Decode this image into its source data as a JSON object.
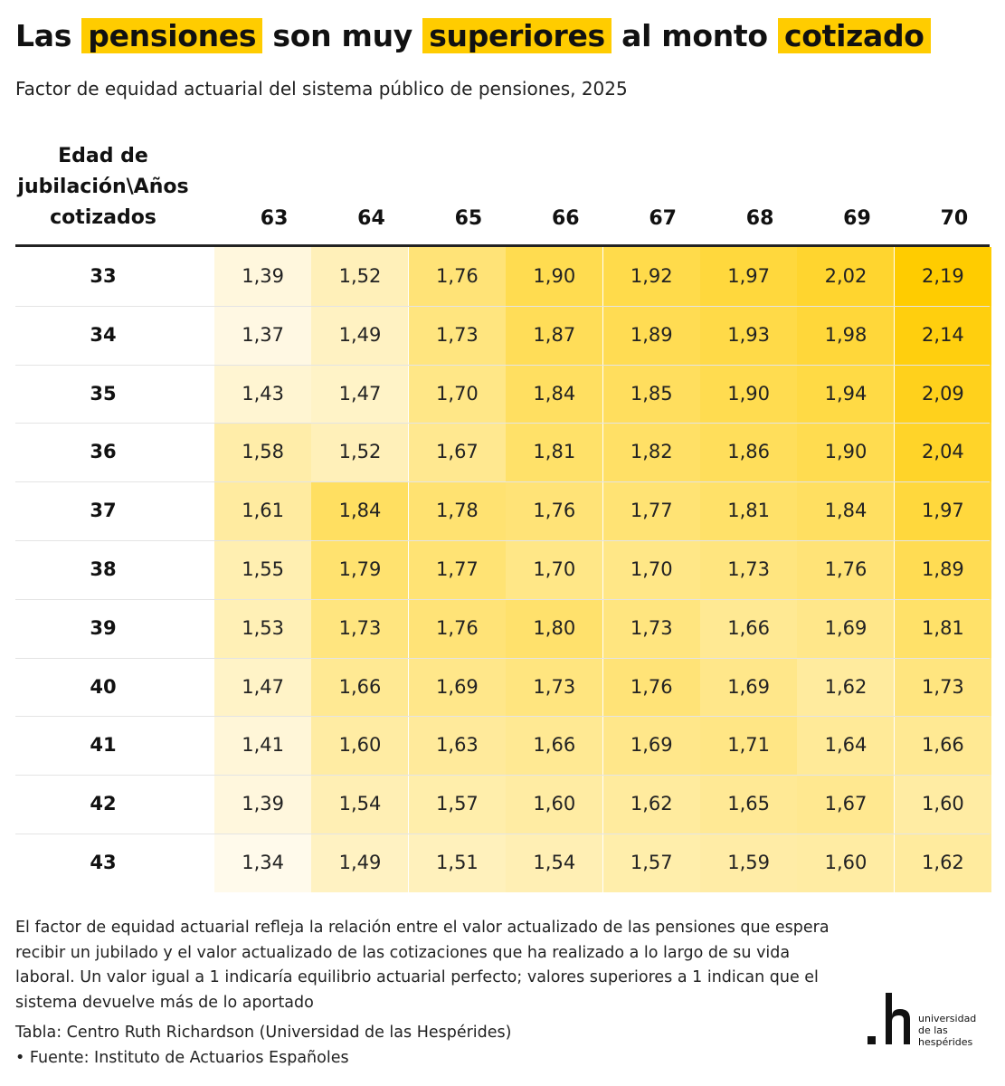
{
  "title": {
    "w1": "Las",
    "w2": "pensiones",
    "w3": "son muy",
    "w4": "superiores",
    "w5": "al monto",
    "w6": "cotizado"
  },
  "subtitle": "Factor de equidad actuarial del sistema público de pensiones, 2025",
  "chart_data": {
    "type": "heatmap",
    "corner_label": "Edad de jubilación\\Años cotizados",
    "columns": [
      "63",
      "64",
      "65",
      "66",
      "67",
      "68",
      "69",
      "70"
    ],
    "rows": [
      "33",
      "34",
      "35",
      "36",
      "37",
      "38",
      "39",
      "40",
      "41",
      "42",
      "43"
    ],
    "values": [
      [
        "1,39",
        "1,52",
        "1,76",
        "1,90",
        "1,92",
        "1,97",
        "2,02",
        "2,19"
      ],
      [
        "1,37",
        "1,49",
        "1,73",
        "1,87",
        "1,89",
        "1,93",
        "1,98",
        "2,14"
      ],
      [
        "1,43",
        "1,47",
        "1,70",
        "1,84",
        "1,85",
        "1,90",
        "1,94",
        "2,09"
      ],
      [
        "1,58",
        "1,52",
        "1,67",
        "1,81",
        "1,82",
        "1,86",
        "1,90",
        "2,04"
      ],
      [
        "1,61",
        "1,84",
        "1,78",
        "1,76",
        "1,77",
        "1,81",
        "1,84",
        "1,97"
      ],
      [
        "1,55",
        "1,79",
        "1,77",
        "1,70",
        "1,70",
        "1,73",
        "1,76",
        "1,89"
      ],
      [
        "1,53",
        "1,73",
        "1,76",
        "1,80",
        "1,73",
        "1,66",
        "1,69",
        "1,81"
      ],
      [
        "1,47",
        "1,66",
        "1,69",
        "1,73",
        "1,76",
        "1,69",
        "1,62",
        "1,73"
      ],
      [
        "1,41",
        "1,60",
        "1,63",
        "1,66",
        "1,69",
        "1,71",
        "1,64",
        "1,66"
      ],
      [
        "1,39",
        "1,54",
        "1,57",
        "1,60",
        "1,62",
        "1,65",
        "1,67",
        "1,60"
      ],
      [
        "1,34",
        "1,49",
        "1,51",
        "1,54",
        "1,57",
        "1,59",
        "1,60",
        "1,62"
      ]
    ],
    "color_low": "#fffaeb",
    "color_high": "#ffcc00"
  },
  "note": "El factor de equidad actuarial refleja la relación entre el valor actualizado de las pensiones que espera recibir un jubilado y el valor actualizado de las cotizaciones que ha realizado a lo largo de su vida laboral. Un valor igual a 1 indicaría equilibrio actuarial perfecto; valores superiores a 1 indican que el sistema devuelve más de lo aportado",
  "credit": {
    "table": "Tabla: Centro Ruth Richardson (Universidad de las Hespérides)",
    "source": "• Fuente: Instituto de Actuarios Españoles"
  },
  "logo": {
    "line1": "universidad",
    "line2": "de las",
    "line3": "hespérides"
  }
}
